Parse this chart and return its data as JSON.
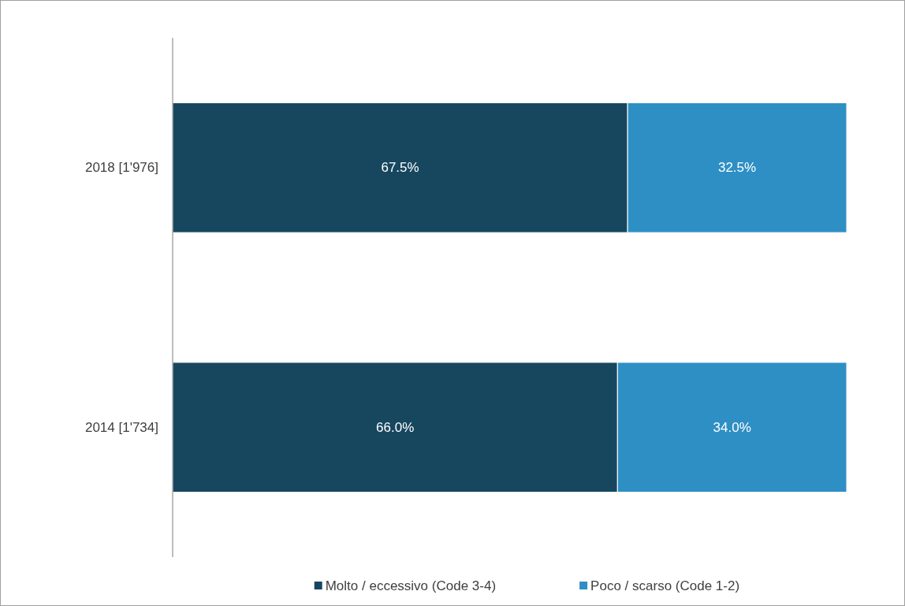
{
  "chart_data": {
    "type": "bar",
    "orientation": "horizontal",
    "stacked": true,
    "categories": [
      "2018 [1'976]",
      "2014 [1'734]"
    ],
    "series": [
      {
        "name": "Molto / eccessivo (Code 3-4)",
        "color": "#17475f",
        "values": [
          67.5,
          66.0
        ],
        "value_labels": [
          "67.5%",
          "66.0%"
        ]
      },
      {
        "name": "Poco / scarso (Code 1-2)",
        "color": "#2e8fc4",
        "values": [
          32.5,
          34.0
        ],
        "value_labels": [
          "32.5%",
          "34.0%"
        ]
      }
    ],
    "legend": "bottom",
    "grid": false
  }
}
